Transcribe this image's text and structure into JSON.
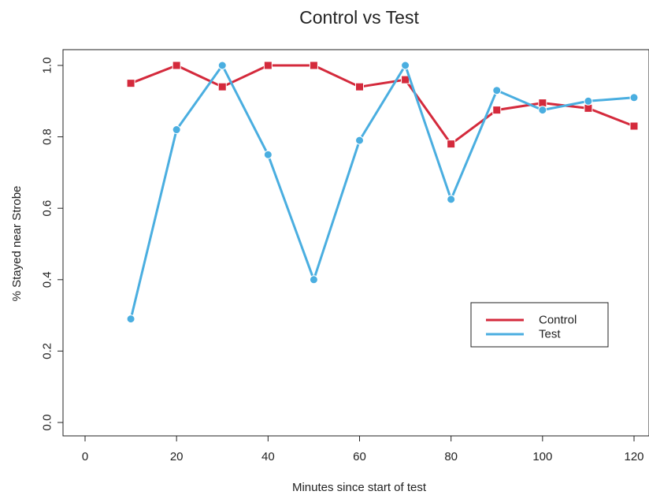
{
  "chart_data": {
    "type": "line",
    "title": "Control vs Test",
    "xlabel": "Minutes since start of test",
    "ylabel": "% Stayed near Strobe",
    "xlim": [
      0,
      120
    ],
    "ylim": [
      0.0,
      1.0
    ],
    "x_ticks": [
      "0",
      "20",
      "40",
      "60",
      "80",
      "100",
      "120"
    ],
    "y_ticks": [
      "0.0",
      "0.2",
      "0.4",
      "0.6",
      "0.8",
      "1.0"
    ],
    "grid": false,
    "legend_position": "center-right",
    "x": [
      10,
      20,
      30,
      40,
      50,
      60,
      70,
      80,
      90,
      100,
      110,
      120
    ],
    "series": [
      {
        "name": "Control",
        "color": "#d42a3c",
        "marker": "square",
        "values": [
          0.95,
          1.0,
          0.94,
          1.0,
          1.0,
          0.94,
          0.96,
          0.78,
          0.875,
          0.895,
          0.88,
          0.83
        ]
      },
      {
        "name": "Test",
        "color": "#4aaee0",
        "marker": "circle",
        "values": [
          0.29,
          0.82,
          1.0,
          0.75,
          0.4,
          0.79,
          1.0,
          0.625,
          0.93,
          0.875,
          0.9,
          0.91
        ]
      }
    ]
  }
}
